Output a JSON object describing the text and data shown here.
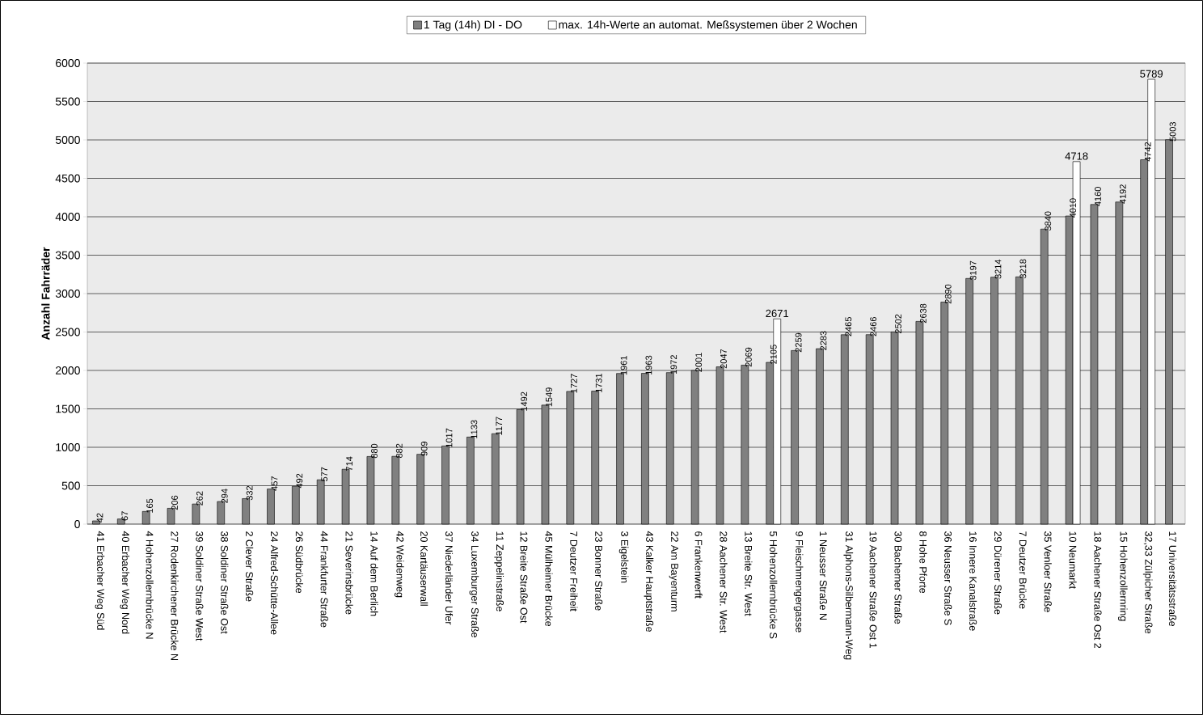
{
  "chart_data": {
    "type": "bar",
    "ylabel": "Anzahl Fahrräder",
    "categories": [
      "41 Erbacher Weg Süd",
      "40 Erbacher Weg Nord",
      "4 Hohenzollernbrücke N",
      "27 Rodenkirchener Brücke N",
      "39 Soldiner Straße West",
      "38 Soldiner Straße Ost",
      "2 Clever Straße",
      "24 Alfred-Schütte-Allee",
      "26 Südbrücke",
      "44 Frankfurter Straße",
      "21 Severinsbrücke",
      "14 Auf dem Berlich",
      "42 Weidenweg",
      "20 Kartäuserwall",
      "37 Niederländer Ufer",
      "34 Luxemburger Straße",
      "11 Zeppelinstraße",
      "12 Breite Straße Ost",
      "45 Mülheimer Brücke",
      "7 Deutzer Freiheit",
      "23 Bonner Straße",
      "3 Eigelstein",
      "43 Kalker Hauptstraße",
      "22 Am Bayenturm",
      "6 Frankenwerft",
      "28 Aachener Str. West",
      "13 Breite Str. West",
      "5 Hohenzollernbrücke S",
      "9 Fleischmengergasse",
      "1 Neusser Straße N",
      "31 Alphons-Silbermann-Weg",
      "19 Aachener Straße Ost 1",
      "30 Bachemer Straße",
      "8 Hohe Pforte",
      "36 Neusser Straße S",
      "16 Innere Kanalstraße",
      "29 Dürener Straße",
      "7 Deutzer Brücke",
      "35 Venloer Straße",
      "10 Neumarkt",
      "18 Aachener Straße Ost 2",
      "15 Hohenzollernring",
      "32,33 Zülpicher Straße",
      "17 Universitätsstraße"
    ],
    "series": [
      {
        "name": "1 Tag (14h) DI - DO",
        "color": "#808080",
        "values": [
          42,
          67,
          165,
          206,
          262,
          294,
          332,
          457,
          492,
          577,
          714,
          880,
          882,
          909,
          1017,
          1133,
          1177,
          1492,
          1549,
          1727,
          1731,
          1961,
          1963,
          1972,
          2001,
          2047,
          2069,
          2105,
          2259,
          2283,
          2465,
          2466,
          2502,
          2638,
          2890,
          3197,
          3214,
          3218,
          3840,
          4010,
          4160,
          4192,
          4742,
          5003
        ]
      },
      {
        "name": "max. 14h-Werte an automat. Meßsystemen über 2 Wochen",
        "color": "#ffffff",
        "values": [
          null,
          null,
          null,
          null,
          null,
          null,
          null,
          null,
          null,
          null,
          null,
          null,
          null,
          null,
          null,
          null,
          null,
          null,
          null,
          null,
          null,
          null,
          null,
          null,
          null,
          null,
          null,
          2671,
          null,
          null,
          null,
          null,
          null,
          null,
          null,
          null,
          null,
          null,
          null,
          4718,
          null,
          null,
          5789,
          null
        ]
      }
    ],
    "ylim": [
      0,
      6000
    ],
    "yticks": [
      0,
      500,
      1000,
      1500,
      2000,
      2500,
      3000,
      3500,
      4000,
      4500,
      5000,
      5500,
      6000
    ],
    "grid": "y",
    "legend": "top",
    "data_labels": true
  }
}
